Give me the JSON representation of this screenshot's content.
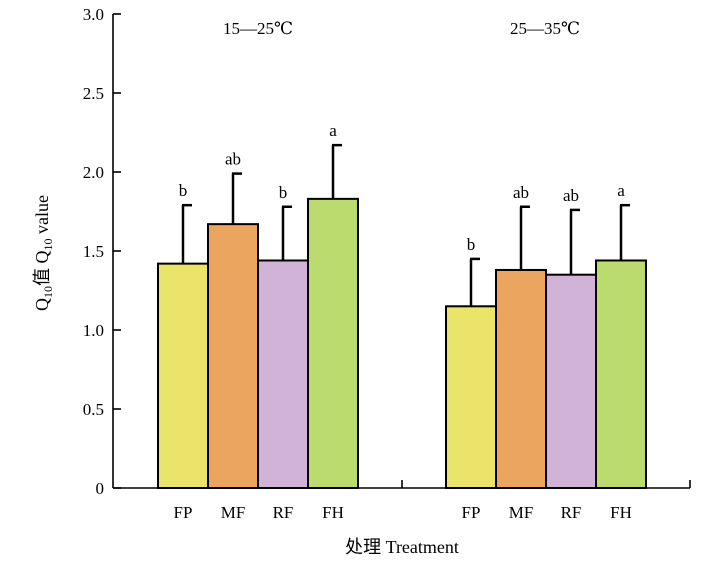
{
  "chart_data": {
    "type": "bar",
    "groups": [
      {
        "label": "15—25℃",
        "bars": [
          {
            "category": "FP",
            "value": 1.42,
            "error": 0.37,
            "sig": "b",
            "color": "#EAE46A"
          },
          {
            "category": "MF",
            "value": 1.67,
            "error": 0.32,
            "sig": "ab",
            "color": "#EBA55E"
          },
          {
            "category": "RF",
            "value": 1.44,
            "error": 0.34,
            "sig": "b",
            "color": "#D2B3D8"
          },
          {
            "category": "FH",
            "value": 1.83,
            "error": 0.34,
            "sig": "a",
            "color": "#BCDB6E"
          }
        ]
      },
      {
        "label": "25—35℃",
        "bars": [
          {
            "category": "FP",
            "value": 1.15,
            "error": 0.3,
            "sig": "b",
            "color": "#EAE46A"
          },
          {
            "category": "MF",
            "value": 1.38,
            "error": 0.4,
            "sig": "ab",
            "color": "#EBA55E"
          },
          {
            "category": "RF",
            "value": 1.35,
            "error": 0.41,
            "sig": "ab",
            "color": "#D2B3D8"
          },
          {
            "category": "FH",
            "value": 1.44,
            "error": 0.35,
            "sig": "a",
            "color": "#BCDB6E"
          }
        ]
      }
    ],
    "xlabel": "处理 Treatment",
    "ylabel": {
      "part1": "Q",
      "sub1": "10",
      "part2": "值 Q",
      "sub2": "10",
      "part3": " value"
    },
    "ylim": [
      0,
      3.0
    ],
    "yticks": [
      "0",
      "0.5",
      "1.0",
      "1.5",
      "2.0",
      "2.5",
      "3.0"
    ],
    "grid": false,
    "legend": "none"
  }
}
